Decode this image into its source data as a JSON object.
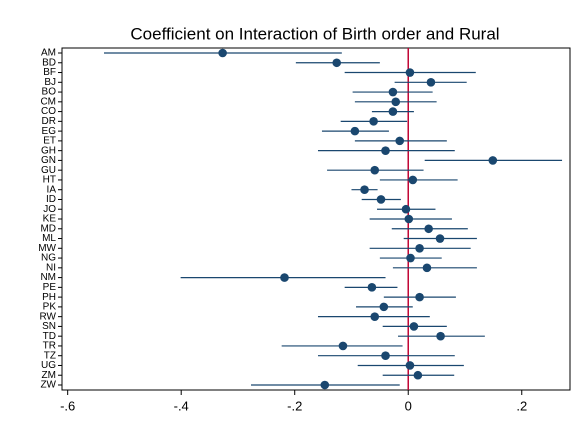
{
  "chart_data": {
    "type": "coefplot",
    "title": "Coefficient on Interaction of Birth order and Rural",
    "categories": [
      "AM",
      "BD",
      "BF",
      "BJ",
      "BO",
      "CM",
      "CO",
      "DR",
      "EG",
      "ET",
      "GH",
      "GN",
      "GU",
      "HT",
      "IA",
      "ID",
      "JO",
      "KE",
      "MD",
      "ML",
      "MW",
      "NG",
      "NI",
      "NM",
      "PE",
      "PH",
      "PK",
      "RW",
      "SN",
      "TD",
      "TR",
      "TZ",
      "UG",
      "ZM",
      "ZW"
    ],
    "series": [
      {
        "color": "#1a476f",
        "values": [
          -0.327,
          -0.126,
          0.003,
          0.04,
          -0.027,
          -0.022,
          -0.027,
          -0.061,
          -0.094,
          -0.015,
          -0.04,
          0.149,
          -0.059,
          0.008,
          -0.077,
          -0.048,
          -0.004,
          0.001,
          0.036,
          0.056,
          0.02,
          0.004,
          0.033,
          -0.218,
          -0.064,
          0.02,
          -0.043,
          -0.059,
          0.01,
          0.057,
          -0.115,
          -0.04,
          0.003,
          0.017,
          -0.147
        ],
        "lower": [
          -0.536,
          -0.198,
          -0.112,
          -0.024,
          -0.098,
          -0.094,
          -0.064,
          -0.119,
          -0.152,
          -0.094,
          -0.159,
          0.029,
          -0.143,
          -0.05,
          -0.1,
          -0.082,
          -0.055,
          -0.068,
          -0.029,
          -0.008,
          -0.068,
          -0.05,
          -0.027,
          -0.401,
          -0.112,
          -0.043,
          -0.092,
          -0.159,
          -0.045,
          -0.018,
          -0.223,
          -0.159,
          -0.089,
          -0.045,
          -0.277
        ],
        "upper": [
          -0.117,
          -0.05,
          0.119,
          0.103,
          0.043,
          0.05,
          0.01,
          -0.002,
          -0.034,
          0.068,
          0.082,
          0.271,
          0.027,
          0.087,
          -0.054,
          -0.013,
          0.048,
          0.077,
          0.105,
          0.121,
          0.11,
          0.059,
          0.121,
          -0.04,
          -0.019,
          0.084,
          0.008,
          0.038,
          0.068,
          0.135,
          -0.01,
          0.082,
          0.098,
          0.081,
          -0.015
        ]
      }
    ],
    "xlim": [
      -0.61,
      0.285
    ],
    "xticks": [
      {
        "value": -0.6,
        "label": "-.6"
      },
      {
        "value": -0.4,
        "label": "-.4"
      },
      {
        "value": -0.2,
        "label": "-.2"
      },
      0,
      {
        "value": 0.2,
        "label": ".2"
      }
    ],
    "reference_line": 0,
    "reference_color": "#c10534"
  }
}
